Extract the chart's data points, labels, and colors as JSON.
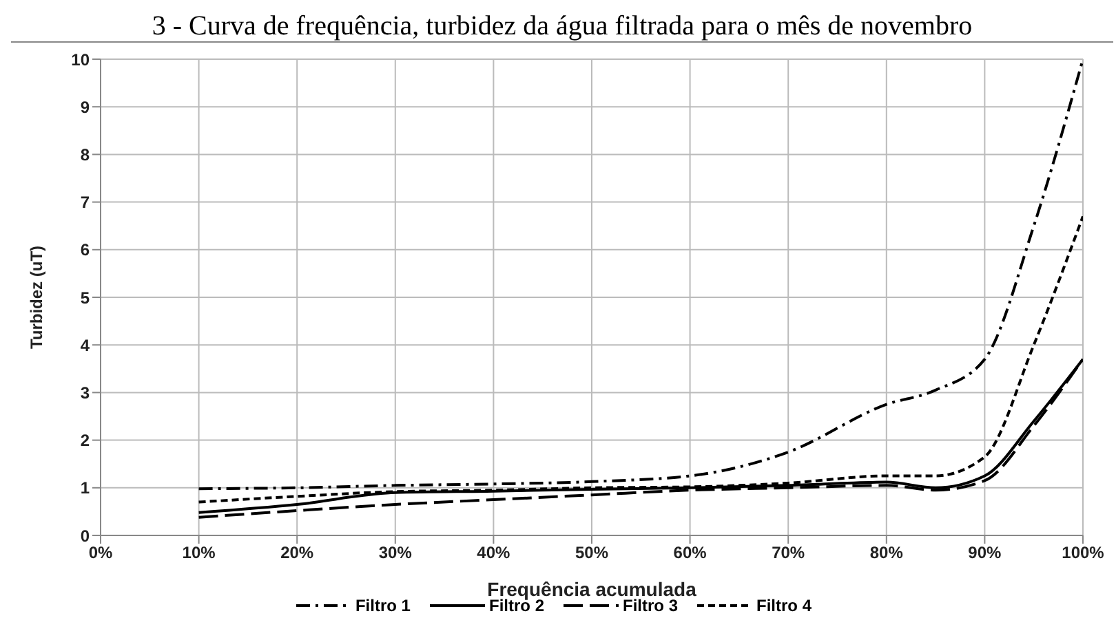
{
  "chart_data": {
    "type": "line",
    "title": "3 - Curva de frequência, turbidez da água filtrada para o mês de novembro",
    "xlabel": "Frequência acumulada",
    "ylabel": "Turbidez (uT)",
    "x": [
      10,
      20,
      30,
      40,
      50,
      60,
      70,
      80,
      85,
      90,
      95,
      100
    ],
    "series": [
      {
        "name": "Filtro 1",
        "color": "#000000",
        "line_style": "dashdot",
        "values": [
          0.98,
          1.0,
          1.05,
          1.08,
          1.13,
          1.25,
          1.75,
          2.75,
          3.05,
          3.7,
          6.5,
          10
        ]
      },
      {
        "name": "Filtro 2",
        "color": "#000000",
        "line_style": "solid",
        "values": [
          0.48,
          0.65,
          0.9,
          0.93,
          0.97,
          1.0,
          1.05,
          1.12,
          1.0,
          1.25,
          2.4,
          3.7
        ]
      },
      {
        "name": "Filtro 3",
        "color": "#000000",
        "line_style": "dashed",
        "values": [
          0.38,
          0.52,
          0.65,
          0.75,
          0.85,
          0.95,
          1.0,
          1.05,
          0.95,
          1.15,
          2.3,
          3.7
        ]
      },
      {
        "name": "Filtro 4",
        "color": "#000000",
        "line_style": "dotted",
        "values": [
          0.7,
          0.82,
          0.92,
          0.95,
          1.0,
          1.02,
          1.1,
          1.25,
          1.25,
          1.65,
          4.0,
          6.7
        ]
      }
    ],
    "xlim": [
      0,
      100
    ],
    "xticks": [
      {
        "value": 0,
        "label": "0%"
      },
      {
        "value": 10,
        "label": "10%"
      },
      {
        "value": 20,
        "label": "20%"
      },
      {
        "value": 30,
        "label": "30%"
      },
      {
        "value": 40,
        "label": "40%"
      },
      {
        "value": 50,
        "label": "50%"
      },
      {
        "value": 60,
        "label": "60%"
      },
      {
        "value": 70,
        "label": "70%"
      },
      {
        "value": 80,
        "label": "80%"
      },
      {
        "value": 90,
        "label": "90%"
      },
      {
        "value": 100,
        "label": "100%"
      }
    ],
    "ylim": [
      0,
      10
    ],
    "yticks": [
      0,
      1,
      2,
      3,
      4,
      5,
      6,
      7,
      8,
      9,
      10
    ],
    "grid": true,
    "legend": "bottom",
    "marker": "none"
  }
}
